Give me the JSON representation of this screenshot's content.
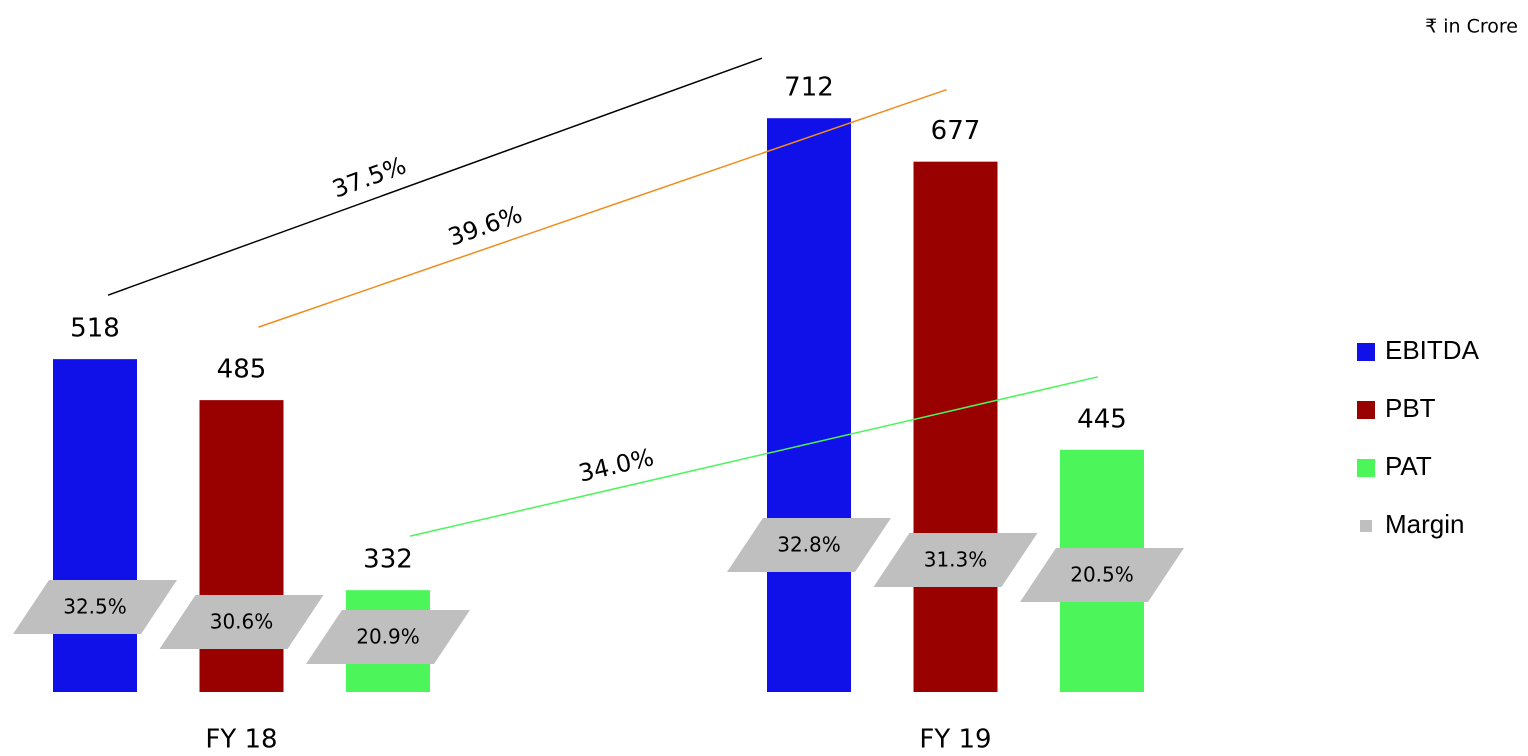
{
  "chart_data": {
    "type": "bar",
    "unit": "₹ in Crore",
    "categories": [
      "FY 18",
      "FY 19"
    ],
    "ylim": [
      250,
      750
    ],
    "series": [
      {
        "name": "EBITDA",
        "color": "#1010e8",
        "values": [
          518,
          712
        ],
        "margin": {
          "values": [
            32.5,
            32.8
          ],
          "value_labels": [
            "32.5%",
            "32.8%"
          ]
        },
        "growth": {
          "value": 37.5,
          "value_label": "37.5%",
          "color": "#000000"
        }
      },
      {
        "name": "PBT",
        "color": "#990000",
        "values": [
          485,
          677
        ],
        "margin": {
          "values": [
            30.6,
            31.3
          ],
          "value_labels": [
            "30.6%",
            "31.3%"
          ]
        },
        "growth": {
          "value": 39.6,
          "value_label": "39.6%",
          "color": "#f08c1e"
        }
      },
      {
        "name": "PAT",
        "color": "#4cf55a",
        "values": [
          332,
          445
        ],
        "margin": {
          "values": [
            20.9,
            20.5
          ],
          "value_labels": [
            "20.9%",
            "20.5%"
          ]
        },
        "growth": {
          "value": 34.0,
          "value_label": "34.0%",
          "color": "#4cf55a"
        }
      }
    ],
    "margin_legend": {
      "name": "Margin",
      "color": "#bfbfbf"
    }
  }
}
